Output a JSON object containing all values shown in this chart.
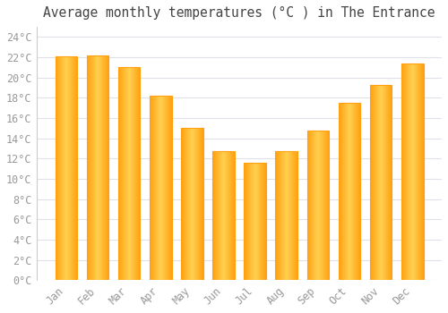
{
  "title": "Average monthly temperatures (°C ) in The Entrance",
  "months": [
    "Jan",
    "Feb",
    "Mar",
    "Apr",
    "May",
    "Jun",
    "Jul",
    "Aug",
    "Sep",
    "Oct",
    "Nov",
    "Dec"
  ],
  "values": [
    22.1,
    22.2,
    21.0,
    18.2,
    15.0,
    12.7,
    11.6,
    12.7,
    14.8,
    17.5,
    19.3,
    21.4
  ],
  "bar_color_center": "#FFD050",
  "bar_color_edge": "#FFA010",
  "background_color": "#FFFFFF",
  "plot_background_color": "#FFFFFF",
  "grid_color": "#E0E0E8",
  "tick_label_color": "#999999",
  "title_color": "#444444",
  "ylim": [
    0,
    25
  ],
  "yticks": [
    0,
    2,
    4,
    6,
    8,
    10,
    12,
    14,
    16,
    18,
    20,
    22,
    24
  ],
  "title_fontsize": 10.5,
  "tick_fontsize": 8.5,
  "bar_width": 0.7,
  "n_gradient_segments": 50
}
